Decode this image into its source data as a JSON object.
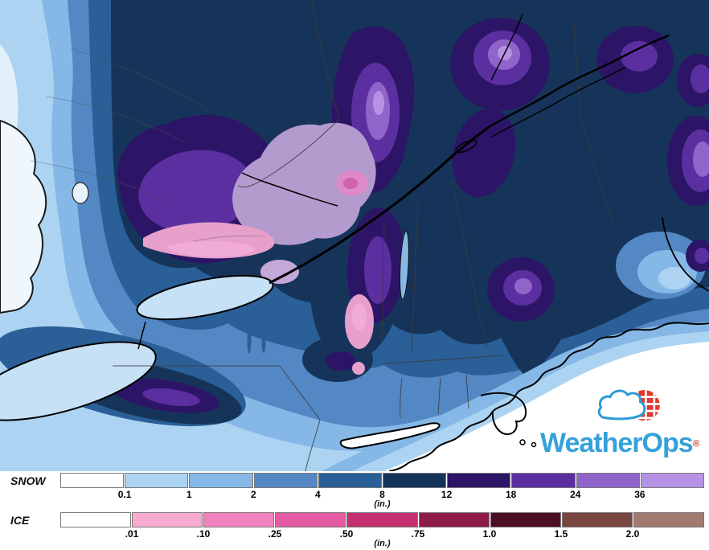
{
  "logo": {
    "text": "WeatherOps",
    "mark": "®",
    "brand_blue": "#35A1DA",
    "brand_red": "#E0392E"
  },
  "legends": {
    "snow": {
      "label": "SNOW",
      "unit": "(in.)",
      "ticks": [
        "0.1",
        "1",
        "2",
        "4",
        "8",
        "12",
        "18",
        "24",
        "36"
      ],
      "colors": [
        "#FFFFFF",
        "#ACD4F2",
        "#85B8E6",
        "#5488C4",
        "#2B5F97",
        "#16345A",
        "#2C1566",
        "#5B2FA0",
        "#8F65C9",
        "#B592E3"
      ]
    },
    "ice": {
      "label": "ICE",
      "unit": "(in.)",
      "ticks": [
        ".01",
        ".10",
        ".25",
        ".50",
        ".75",
        "1.0",
        "1.5",
        "2.0"
      ],
      "colors": [
        "#FFFFFF",
        "#F7ABD1",
        "#F282BD",
        "#E45AA3",
        "#C23070",
        "#8F1B47",
        "#4D0F26",
        "#7B453F",
        "#A07A70"
      ]
    }
  }
}
